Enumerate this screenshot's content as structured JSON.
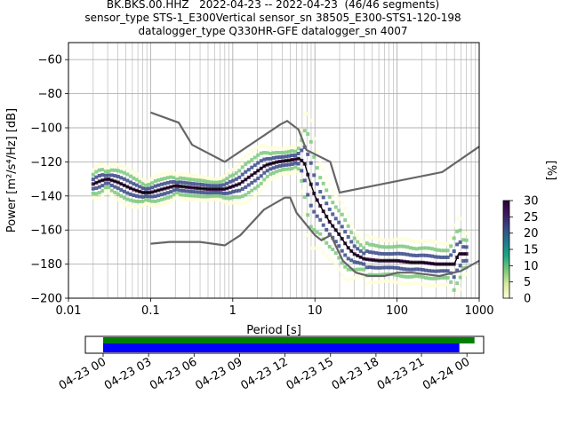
{
  "title_lines": [
    "BK.BKS.00.HHZ   2022-04-23 -- 2022-04-23  (46/46 segments)",
    "sensor_type STS-1_E300Vertical sensor_sn 38505_E300-STS1-120-198",
    "datalogger_type Q330HR-GFE datalogger_sn 4007"
  ],
  "colors": {
    "noise_model": "#666666",
    "mean_line": "#000000",
    "grid": "#b0b0b0",
    "coverage_data": "#008000",
    "coverage_gaps": "#0000ff"
  },
  "chart_data": [
    {
      "type": "heatmap",
      "xscale": "log",
      "xlabel": "Period [s]",
      "ylabel": "Power [m²/s⁴/Hz] [dB]",
      "xlim": [
        0.01,
        1000
      ],
      "ylim": [
        -200,
        -50
      ],
      "xticks": [
        0.01,
        0.1,
        1,
        10,
        100,
        1000
      ],
      "xtick_labels": [
        "0.01",
        "0.1",
        "1",
        "10",
        "100",
        "1000"
      ],
      "yticks": [
        -60,
        -80,
        -100,
        -120,
        -140,
        -160,
        -180,
        -200
      ],
      "ytick_labels": [
        "−60",
        "−80",
        "−100",
        "−120",
        "−140",
        "−160",
        "−180",
        "−200"
      ],
      "grid": true,
      "colorbar": {
        "label": "[%]",
        "ticks": [
          0,
          5,
          10,
          15,
          20,
          25,
          30
        ],
        "tick_labels": [
          "0",
          "5",
          "10",
          "15",
          "20",
          "25",
          "30"
        ],
        "range": [
          0,
          30
        ],
        "colormap": [
          "#fffed8",
          "#d8ec9e",
          "#7cc97c",
          "#1ea885",
          "#1e7c8a",
          "#3a4a87",
          "#3e1860",
          "#2a0036"
        ]
      },
      "series": [
        {
          "role": "new-high-noise-model",
          "x": [
            0.1,
            0.22,
            0.32,
            0.8,
            3.8,
            4.6,
            6.3,
            7.9,
            15.4,
            20,
            354.8,
            1000
          ],
          "y": [
            -91,
            -97,
            -110,
            -120,
            -98,
            -96,
            -101,
            -113,
            -120,
            -138,
            -126,
            -111
          ]
        },
        {
          "role": "new-low-noise-model",
          "x": [
            0.1,
            0.17,
            0.4,
            0.8,
            1.24,
            2.4,
            4.3,
            5,
            6,
            10,
            12,
            15.6,
            21.9,
            31.6,
            45,
            70,
            101,
            154,
            328,
            600,
            1000
          ],
          "y": [
            -168,
            -167,
            -167,
            -169,
            -163,
            -148,
            -141,
            -141,
            -150,
            -163,
            -166,
            -163,
            -178,
            -185,
            -187,
            -187,
            -185,
            -185,
            -187,
            -184,
            -178
          ]
        },
        {
          "role": "mean-psd",
          "x": [
            0.02,
            0.025,
            0.03,
            0.04,
            0.06,
            0.08,
            0.1,
            0.14,
            0.2,
            0.3,
            0.5,
            0.8,
            1.2,
            1.8,
            2.5,
            3.5,
            5,
            6.5,
            7.5,
            8.5,
            10,
            12,
            15,
            20,
            25,
            30,
            40,
            60,
            100,
            150,
            200,
            300,
            400,
            500,
            560,
            600,
            700
          ],
          "y": [
            -133,
            -131,
            -130,
            -132,
            -136,
            -138,
            -138,
            -136,
            -134,
            -135,
            -136,
            -136,
            -133,
            -127,
            -122,
            -120,
            -119,
            -118,
            -121,
            -130,
            -140,
            -147,
            -155,
            -163,
            -170,
            -174,
            -177,
            -178,
            -178,
            -179,
            -179,
            -180,
            -180,
            -180,
            -174,
            -174,
            -174
          ]
        }
      ]
    },
    {
      "type": "bar",
      "role": "data-coverage",
      "x_start": "2022-04-23 00:00",
      "x_end": "2022-04-24 00:30",
      "xtick_labels": [
        "04-23 00",
        "04-23 03",
        "04-23 06",
        "04-23 09",
        "04-23 12",
        "04-23 15",
        "04-23 18",
        "04-23 21",
        "04-24 00"
      ],
      "bars": [
        {
          "role": "data",
          "start_hours": 0,
          "end_hours": 24.5
        },
        {
          "role": "processed",
          "start_hours": 0,
          "end_hours": 23.5
        }
      ]
    }
  ]
}
